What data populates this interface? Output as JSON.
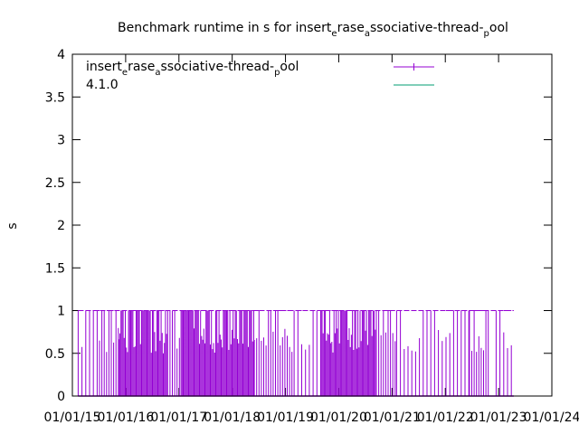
{
  "chart_data": {
    "type": "line",
    "title": {
      "parts": [
        "Benchmark runtime in s for insert",
        "e",
        "rase",
        "a",
        "ssociative-thread-",
        "p",
        "ool"
      ]
    },
    "ylabel": "s",
    "xlabel": "",
    "ylim": [
      0,
      4
    ],
    "xlim": [
      "2015-01-01",
      "2024-01-01"
    ],
    "yticks": [
      "0",
      "0.5",
      "1",
      "1.5",
      "2",
      "2.5",
      "3",
      "3.5",
      "4"
    ],
    "xticks": [
      "01/01/15",
      "01/01/16",
      "01/01/17",
      "01/01/18",
      "01/01/19",
      "01/01/20",
      "01/01/21",
      "01/01/22",
      "01/01/23",
      "01/01/24"
    ],
    "legend_placement": "top",
    "series": [
      {
        "name_parts": [
          "insert",
          "e",
          "rase",
          "a",
          "ssociative-thread-",
          "p",
          "ool"
        ],
        "color": "#9400d3",
        "marker": "plus",
        "segments": [
          {
            "start": "2015-02-10",
            "end": "2015-06-20",
            "pattern": "sparse"
          },
          {
            "start": "2015-06-20",
            "end": "2015-11-15",
            "pattern": "medium"
          },
          {
            "start": "2015-11-15",
            "end": "2016-10-15",
            "pattern": "dense"
          },
          {
            "start": "2016-10-15",
            "end": "2017-01-15",
            "pattern": "medium"
          },
          {
            "start": "2017-01-15",
            "end": "2018-06-01",
            "pattern": "dense"
          },
          {
            "start": "2018-06-01",
            "end": "2019-03-01",
            "pattern": "medium"
          },
          {
            "start": "2019-03-01",
            "end": "2019-09-01",
            "pattern": "sparse"
          },
          {
            "start": "2019-09-01",
            "end": "2020-09-15",
            "pattern": "dense"
          },
          {
            "start": "2020-09-15",
            "end": "2021-02-01",
            "pattern": "medium"
          },
          {
            "start": "2021-02-01",
            "end": "2022-06-15",
            "pattern": "sparse"
          },
          {
            "start": "2022-06-15",
            "end": "2022-11-01",
            "pattern": "medium"
          },
          {
            "start": "2022-11-01",
            "end": "2022-12-15",
            "pattern": "zero"
          },
          {
            "start": "2022-12-15",
            "end": "2023-04-15",
            "pattern": "sparse"
          }
        ],
        "values": [
          0,
          1
        ]
      },
      {
        "name": "4.1.0",
        "color": "#009e73",
        "marker": "none",
        "values": []
      }
    ]
  }
}
